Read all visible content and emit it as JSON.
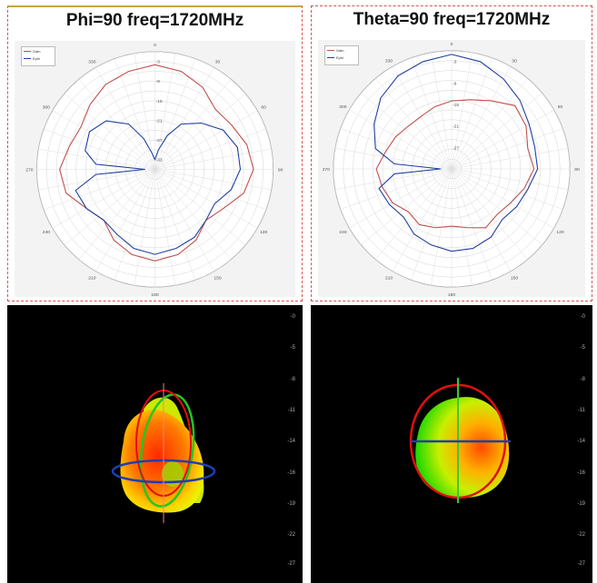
{
  "chart_data": [
    {
      "type": "line",
      "subtype": "polar",
      "title": "Phi=90 freq=1720MHz",
      "angle_labels": [
        "0",
        "30",
        "60",
        "90",
        "120",
        "150",
        "180",
        "210",
        "240",
        "270",
        "300",
        "330"
      ],
      "radial_labels": [
        "-3",
        "-9",
        "-15",
        "-21",
        "-27",
        "-33"
      ],
      "r_range_db": [
        -36,
        0
      ],
      "grid": true,
      "legend_position": "top-left",
      "series": [
        {
          "name": "Gain",
          "color": "#c0504d",
          "angles": [
            0,
            15,
            30,
            45,
            60,
            75,
            90,
            105,
            120,
            135,
            150,
            165,
            180,
            195,
            210,
            225,
            240,
            255,
            270,
            285,
            300,
            315,
            330,
            345
          ],
          "values_db": [
            -4,
            -5,
            -7,
            -10,
            -9,
            -7,
            -6,
            -8,
            -12,
            -14,
            -11,
            -9,
            -8,
            -9,
            -11,
            -14,
            -12,
            -8,
            -7,
            -9,
            -10,
            -8,
            -6,
            -5
          ]
        },
        {
          "name": "Ephi",
          "color": "#1f3f9f",
          "angles": [
            0,
            10,
            20,
            30,
            45,
            60,
            75,
            90,
            105,
            120,
            135,
            150,
            165,
            180,
            195,
            210,
            225,
            240,
            255,
            265,
            270,
            275,
            285,
            300,
            315,
            330,
            340,
            350
          ],
          "values_db": [
            -33,
            -30,
            -25,
            -20,
            -16,
            -12,
            -10,
            -10,
            -12,
            -15,
            -14,
            -12,
            -11,
            -10,
            -11,
            -13,
            -14,
            -12,
            -11,
            -18,
            -33,
            -18,
            -14,
            -13,
            -15,
            -20,
            -26,
            -31
          ]
        }
      ]
    },
    {
      "type": "line",
      "subtype": "polar",
      "title": "Theta=90 freq=1720MHz",
      "angle_labels": [
        "0",
        "30",
        "60",
        "90",
        "120",
        "150",
        "180",
        "210",
        "240",
        "270",
        "300",
        "330"
      ],
      "radial_labels": [
        "-3",
        "-9",
        "-15",
        "-21",
        "-27"
      ],
      "r_range_db": [
        -33,
        0
      ],
      "grid": true,
      "legend_position": "top-left",
      "series": [
        {
          "name": "Gain",
          "color": "#c0504d",
          "angles": [
            0,
            15,
            30,
            45,
            60,
            75,
            90,
            105,
            120,
            135,
            150,
            165,
            180,
            195,
            210,
            225,
            240,
            255,
            270,
            285,
            300,
            315,
            330,
            345
          ],
          "values_db": [
            -14,
            -13,
            -11,
            -8,
            -9,
            -11,
            -10,
            -12,
            -14,
            -15,
            -14,
            -16,
            -17,
            -16,
            -15,
            -16,
            -14,
            -13,
            -12,
            -14,
            -15,
            -16,
            -16,
            -15
          ]
        },
        {
          "name": "Ephi",
          "color": "#1f3f9f",
          "angles": [
            0,
            15,
            30,
            45,
            60,
            75,
            90,
            105,
            120,
            135,
            150,
            165,
            180,
            195,
            210,
            225,
            240,
            255,
            265,
            270,
            275,
            285,
            300,
            315,
            330,
            345
          ],
          "values_db": [
            -1,
            -2,
            -4,
            -6,
            -8,
            -9,
            -9,
            -11,
            -12,
            -13,
            -11,
            -10,
            -10,
            -11,
            -12,
            -14,
            -13,
            -12,
            -17,
            -30,
            -17,
            -11,
            -8,
            -5,
            -3,
            -2
          ]
        }
      ]
    }
  ],
  "pattern3d": {
    "scale_labels": [
      "-0",
      "-5",
      "-8",
      "-11",
      "-14",
      "-16",
      "-19",
      "-22",
      "-27"
    ]
  }
}
